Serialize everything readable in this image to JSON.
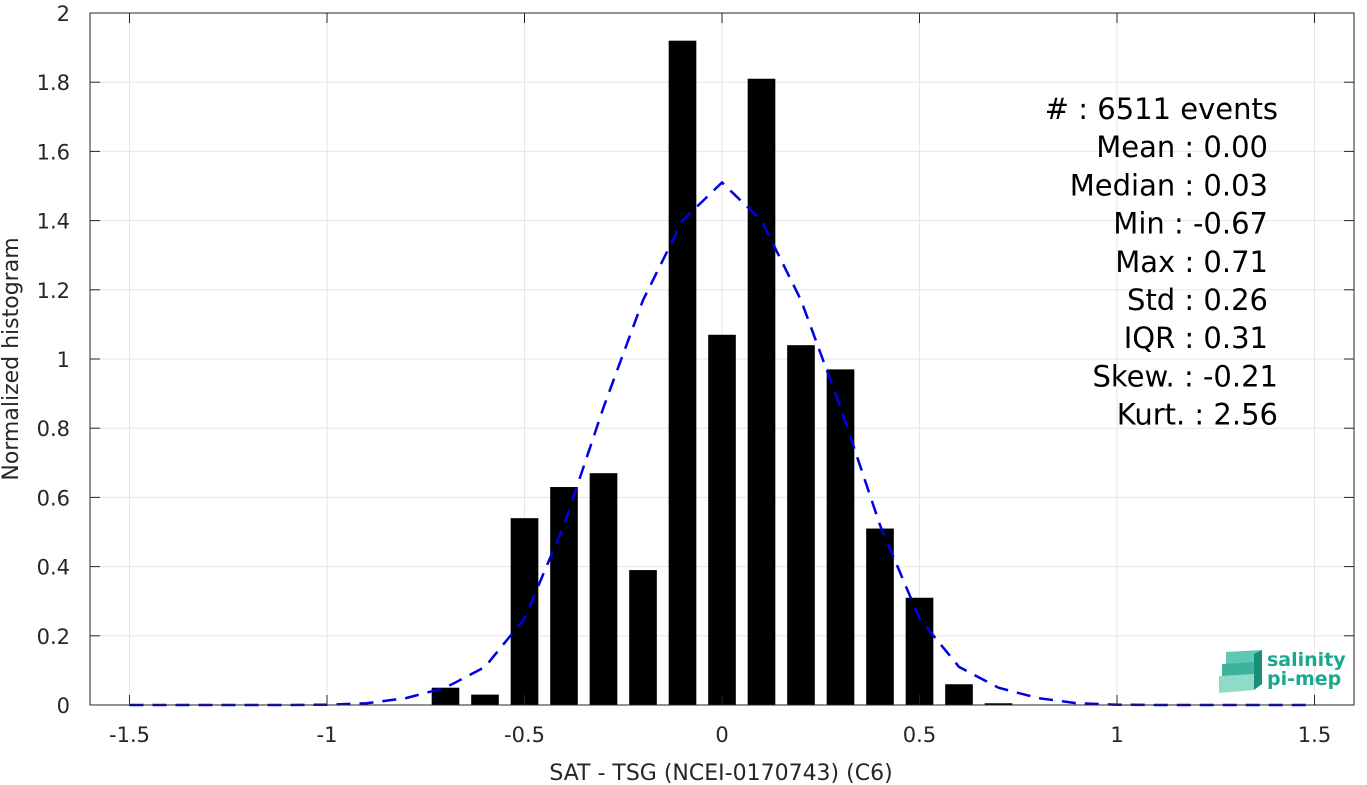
{
  "chart_data": {
    "type": "bar",
    "xlabel": "SAT - TSG (NCEI-0170743) (C6)",
    "ylabel": "Normalized histogram",
    "xlim": [
      -1.6,
      1.6
    ],
    "ylim": [
      0,
      2
    ],
    "xticks": [
      -1.5,
      -1,
      -0.5,
      0,
      0.5,
      1,
      1.5
    ],
    "xtick_labels": [
      "-1.5",
      "-1",
      "-0.5",
      "0",
      "0.5",
      "1",
      "1.5"
    ],
    "yticks": [
      0,
      0.2,
      0.4,
      0.6,
      0.8,
      1,
      1.2,
      1.4,
      1.6,
      1.8,
      2
    ],
    "ytick_labels": [
      "0",
      "0.2",
      "0.4",
      "0.6",
      "0.8",
      "1",
      "1.2",
      "1.4",
      "1.6",
      "1.8",
      "2"
    ],
    "grid": true,
    "bar_color": "#000000",
    "bar_width": 0.07,
    "bars": {
      "x": [
        -0.7,
        -0.6,
        -0.5,
        -0.4,
        -0.3,
        -0.2,
        -0.1,
        0.0,
        0.1,
        0.2,
        0.3,
        0.4,
        0.5,
        0.6,
        0.7
      ],
      "values": [
        0.05,
        0.03,
        0.54,
        0.63,
        0.67,
        0.39,
        1.92,
        1.07,
        1.81,
        1.04,
        0.97,
        0.51,
        0.31,
        0.06,
        0.005
      ]
    },
    "fit_curve": {
      "color": "#0000e6",
      "style": "dashed",
      "x": [
        -1.5,
        -1.4,
        -1.3,
        -1.2,
        -1.1,
        -1.0,
        -0.9,
        -0.8,
        -0.7,
        -0.6,
        -0.5,
        -0.4,
        -0.3,
        -0.2,
        -0.1,
        0.0,
        0.1,
        0.2,
        0.3,
        0.4,
        0.5,
        0.6,
        0.7,
        0.8,
        0.9,
        1.0,
        1.1,
        1.2,
        1.3,
        1.4,
        1.5
      ],
      "y": [
        0,
        0,
        0,
        0,
        0,
        0.001,
        0.005,
        0.02,
        0.05,
        0.11,
        0.25,
        0.52,
        0.86,
        1.17,
        1.4,
        1.51,
        1.4,
        1.17,
        0.86,
        0.52,
        0.25,
        0.11,
        0.05,
        0.02,
        0.005,
        0.001,
        0,
        0,
        0,
        0,
        0
      ]
    },
    "annotations": [
      "#  : 6511 events",
      "Mean : 0.00",
      "Median : 0.03",
      "Min : -0.67",
      "Max : 0.71",
      "Std : 0.26",
      "IQR : 0.31",
      "Skew. : -0.21",
      "Kurt. : 2.56"
    ]
  },
  "logo": {
    "line1": "salinity",
    "line2": "pi-mep",
    "color": "#1ba88f"
  }
}
